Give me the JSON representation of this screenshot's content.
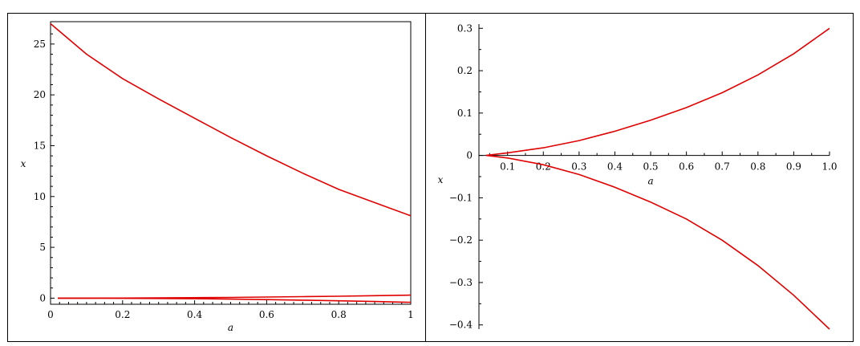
{
  "chart_data": [
    {
      "type": "line",
      "title": "",
      "xlabel": "a",
      "ylabel": "x",
      "xlim": [
        0,
        1
      ],
      "ylim": [
        -0.6,
        27.2
      ],
      "x_ticks": [
        0,
        0.2,
        0.4,
        0.6,
        0.8,
        1
      ],
      "x_tick_labels": [
        "0",
        "0.2",
        "0.4",
        "0.6",
        "0.8",
        "1"
      ],
      "y_ticks": [
        0,
        5,
        10,
        15,
        20,
        25
      ],
      "y_tick_labels": [
        "0",
        "5",
        "10",
        "15",
        "20",
        "25"
      ],
      "grid": false,
      "boxed": true,
      "color": "#e00000",
      "series": [
        {
          "x": [
            0,
            0.1,
            0.2,
            0.3,
            0.4,
            0.5,
            0.6,
            0.7,
            0.8,
            0.9,
            1.0
          ],
          "y": [
            27.0,
            24.0,
            21.6,
            19.6,
            17.7,
            15.8,
            14.0,
            12.3,
            10.7,
            9.4,
            8.1
          ]
        },
        {
          "x": [
            0.02,
            0.1,
            0.2,
            0.3,
            0.4,
            0.5,
            0.6,
            0.7,
            0.8,
            0.9,
            1.0
          ],
          "y": [
            0.0,
            0.003,
            0.012,
            0.027,
            0.048,
            0.075,
            0.108,
            0.147,
            0.192,
            0.243,
            0.3
          ]
        },
        {
          "x": [
            0.02,
            0.1,
            0.2,
            0.3,
            0.4,
            0.5,
            0.6,
            0.7,
            0.8,
            0.9,
            1.0
          ],
          "y": [
            0.0,
            -0.003,
            -0.018,
            -0.035,
            -0.058,
            -0.095,
            -0.14,
            -0.195,
            -0.26,
            -0.33,
            -0.41
          ]
        }
      ]
    },
    {
      "type": "line",
      "title": "",
      "xlabel": "a",
      "ylabel": "x",
      "xlim": [
        0.02,
        1.0
      ],
      "ylim": [
        -0.41,
        0.31
      ],
      "x_ticks": [
        0.1,
        0.2,
        0.3,
        0.4,
        0.5,
        0.6,
        0.7,
        0.8,
        0.9,
        1.0
      ],
      "x_tick_labels": [
        "0.1",
        "0.2",
        "0.3",
        "0.4",
        "0.5",
        "0.6",
        "0.7",
        "0.8",
        "0.9",
        "1.0"
      ],
      "y_ticks": [
        0.3,
        0.2,
        0.1,
        0,
        -0.1,
        -0.2,
        -0.3,
        -0.4
      ],
      "y_tick_labels": [
        "0.3",
        "0.2",
        "0.1",
        "0",
        "−0.1",
        "−0.2",
        "−0.3",
        "−0.4"
      ],
      "grid": false,
      "boxed": false,
      "color": "#e00000",
      "series": [
        {
          "x": [
            0.04,
            0.1,
            0.2,
            0.3,
            0.4,
            0.5,
            0.6,
            0.7,
            0.8,
            0.9,
            1.0
          ],
          "y": [
            0.0,
            0.006,
            0.018,
            0.035,
            0.057,
            0.083,
            0.113,
            0.148,
            0.19,
            0.24,
            0.3
          ]
        },
        {
          "x": [
            0.04,
            0.1,
            0.2,
            0.3,
            0.4,
            0.5,
            0.6,
            0.7,
            0.8,
            0.9,
            1.0
          ],
          "y": [
            0.0,
            -0.006,
            -0.022,
            -0.045,
            -0.075,
            -0.11,
            -0.15,
            -0.2,
            -0.26,
            -0.33,
            -0.41
          ]
        }
      ]
    }
  ]
}
